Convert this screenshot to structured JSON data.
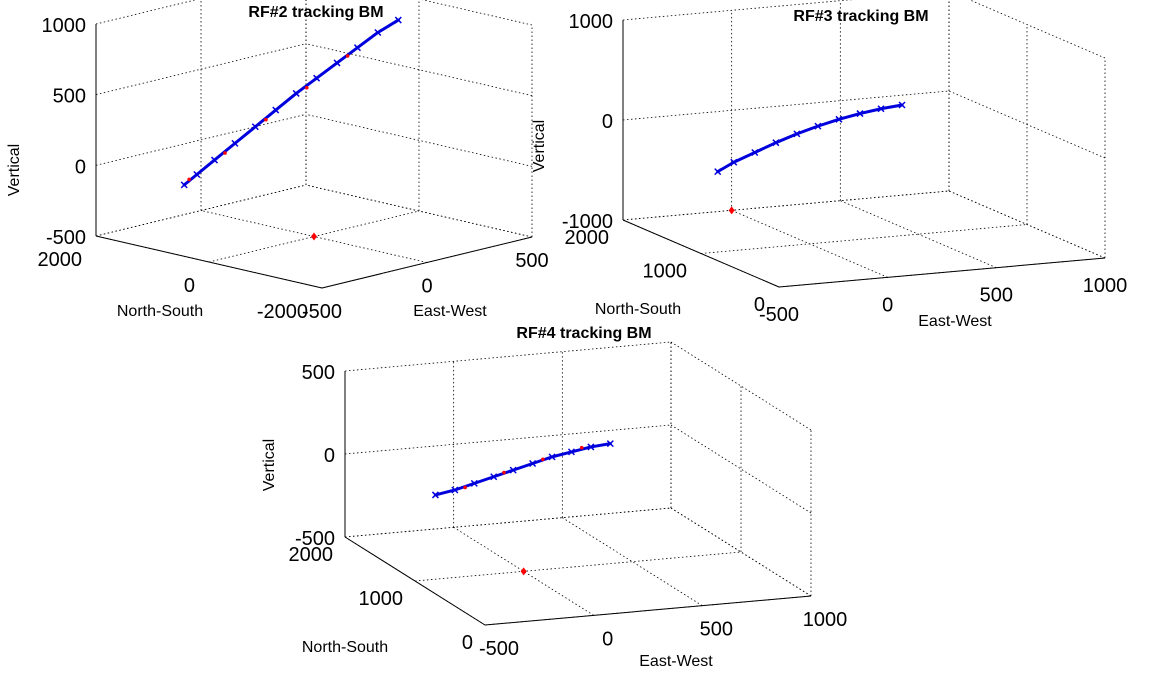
{
  "chart_data": [
    {
      "type": "line3d",
      "title": "RF#2 tracking BM",
      "xlabel": "East-West",
      "ylabel": "North-South",
      "zlabel": "Vertical",
      "xticks": [
        "-500",
        "0",
        "500"
      ],
      "yticks": [
        "-2000",
        "0",
        "2000"
      ],
      "zticks": [
        "-500",
        "0",
        "500",
        "1000"
      ],
      "xlim": [
        -500,
        500
      ],
      "ylim": [
        -2000,
        2000
      ],
      "zlim": [
        -500,
        1000
      ],
      "grid": true,
      "series": [
        {
          "color": "#0000dd",
          "marker": "x",
          "style": "line",
          "x": [
            -80,
            -60,
            -30,
            0,
            30,
            60,
            90,
            120,
            150,
            180,
            210,
            240
          ],
          "y": [
            2000,
            1850,
            1650,
            1400,
            1150,
            900,
            650,
            400,
            150,
            -100,
            -350,
            -600
          ],
          "z": [
            -290,
            -210,
            -100,
            30,
            160,
            290,
            420,
            540,
            660,
            780,
            900,
            1000
          ]
        },
        {
          "color": "#ff0000",
          "marker": "dot",
          "style": "points",
          "x": [
            -70,
            -20,
            40,
            100,
            160
          ],
          "y": [
            1950,
            1500,
            1000,
            500,
            0
          ],
          "z": [
            -250,
            -40,
            220,
            470,
            720
          ]
        },
        {
          "color": "#ff0000",
          "marker": "diamond",
          "style": "point",
          "x": [
            0
          ],
          "y": [
            0
          ],
          "z": [
            -500
          ]
        }
      ]
    },
    {
      "type": "line3d",
      "title": "RF#3 tracking BM",
      "xlabel": "East-West",
      "ylabel": "North-South",
      "zlabel": "Vertical",
      "xticks": [
        "-500",
        "0",
        "500",
        "1000"
      ],
      "yticks": [
        "0",
        "1000",
        "2000"
      ],
      "zticks": [
        "-1000",
        "0",
        "1000"
      ],
      "xlim": [
        -500,
        1000
      ],
      "ylim": [
        0,
        2000
      ],
      "zlim": [
        -1000,
        1000
      ],
      "grid": true,
      "series": [
        {
          "color": "#0000dd",
          "marker": "x",
          "style": "line",
          "x": [
            -100,
            -80,
            -55,
            -30,
            -5,
            20,
            45,
            70,
            95,
            120
          ],
          "y": [
            1900,
            1750,
            1550,
            1350,
            1150,
            950,
            750,
            550,
            350,
            150
          ],
          "z": [
            -560,
            -420,
            -260,
            -100,
            50,
            190,
            320,
            440,
            550,
            650
          ]
        },
        {
          "color": "#ff0000",
          "marker": "diamond",
          "style": "point",
          "x": [
            0
          ],
          "y": [
            2000
          ],
          "z": [
            -1000
          ]
        }
      ]
    },
    {
      "type": "line3d",
      "title": "RF#4 tracking BM",
      "xlabel": "East-West",
      "ylabel": "North-South",
      "zlabel": "Vertical",
      "xticks": [
        "-500",
        "0",
        "500",
        "1000"
      ],
      "yticks": [
        "0",
        "1000",
        "2000"
      ],
      "zticks": [
        "-500",
        "0",
        "500"
      ],
      "xlim": [
        -500,
        1000
      ],
      "ylim": [
        0,
        2000
      ],
      "zlim": [
        -500,
        500
      ],
      "grid": true,
      "series": [
        {
          "color": "#0000dd",
          "marker": "x",
          "style": "line",
          "x": [
            -100,
            -75,
            -50,
            -25,
            0,
            25,
            50,
            75,
            100,
            125
          ],
          "y": [
            1950,
            1750,
            1550,
            1350,
            1150,
            950,
            750,
            550,
            350,
            150
          ],
          "z": [
            -280,
            -200,
            -110,
            -20,
            70,
            160,
            250,
            330,
            410,
            480
          ]
        },
        {
          "color": "#ff0000",
          "marker": "dot",
          "style": "points",
          "x": [
            -60,
            -10,
            40,
            90
          ],
          "y": [
            1650,
            1250,
            850,
            450
          ],
          "z": [
            -160,
            30,
            210,
            380
          ]
        },
        {
          "color": "#ff0000",
          "marker": "diamond",
          "style": "point",
          "x": [
            0
          ],
          "y": [
            1000
          ],
          "z": [
            -500
          ]
        }
      ]
    }
  ]
}
